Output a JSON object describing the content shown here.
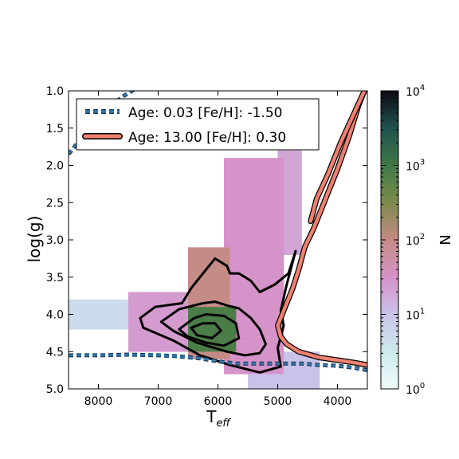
{
  "chart_data": {
    "type": "heatmap",
    "xlabel": "T",
    "xlabel_sub": "eff",
    "ylabel": "log(g)",
    "xlim": [
      8500,
      3500
    ],
    "ylim": [
      5.0,
      1.0
    ],
    "x_ticks": [
      8000,
      7000,
      6000,
      5000,
      4000
    ],
    "y_ticks": [
      1.0,
      1.5,
      2.0,
      2.5,
      3.0,
      3.5,
      4.0,
      4.5,
      5.0
    ],
    "bin": {
      "teff": 100,
      "logg": 0.1
    },
    "colorbar": {
      "label": "N",
      "scale": "log",
      "range": [
        1,
        10000
      ],
      "tick_base": "10",
      "tick_exponents": [
        "0",
        "1",
        "2",
        "3",
        "4"
      ]
    },
    "density_regions": [
      {
        "teff": [
          8500,
          7500
        ],
        "logg": [
          3.8,
          4.2
        ],
        "count": 5
      },
      {
        "teff": [
          7500,
          6500
        ],
        "logg": [
          3.7,
          4.5
        ],
        "count": 25
      },
      {
        "teff": [
          6500,
          5800
        ],
        "logg": [
          3.1,
          4.6
        ],
        "count": 100
      },
      {
        "teff": [
          5900,
          4900
        ],
        "logg": [
          1.9,
          4.8
        ],
        "count": 30
      },
      {
        "teff": [
          5000,
          4600
        ],
        "logg": [
          1.8,
          3.2
        ],
        "count": 20
      },
      {
        "teff": [
          5500,
          4300
        ],
        "logg": [
          4.5,
          5.0
        ],
        "count": 10
      },
      {
        "teff": [
          6500,
          5700
        ],
        "logg": [
          3.9,
          4.5
        ],
        "count": 800
      }
    ],
    "contours": [
      {
        "teff": [
          7300,
          7050,
          6600,
          6450,
          6200,
          6050,
          5850,
          5800,
          5650,
          5450,
          5300,
          5050,
          4820,
          4700,
          4850,
          4950,
          4900,
          5000,
          4950,
          5300,
          5800,
          6300,
          6750,
          7250,
          7300
        ],
        "logg": [
          4.05,
          3.9,
          3.85,
          3.65,
          3.4,
          3.25,
          3.35,
          3.45,
          3.45,
          3.55,
          3.7,
          3.6,
          3.45,
          3.15,
          3.6,
          3.95,
          4.15,
          4.45,
          4.7,
          4.78,
          4.68,
          4.55,
          4.35,
          4.18,
          4.05
        ]
      },
      {
        "teff": [
          6950,
          6650,
          6250,
          6050,
          5850,
          5650,
          5450,
          5300,
          5200,
          5300,
          5550,
          5850,
          6350,
          6750,
          6950
        ],
        "logg": [
          4.1,
          3.93,
          3.85,
          3.83,
          3.88,
          3.92,
          4.05,
          4.2,
          4.4,
          4.52,
          4.55,
          4.5,
          4.38,
          4.22,
          4.1
        ]
      },
      {
        "teff": [
          6650,
          6400,
          6200,
          5900,
          5700,
          5650,
          5900,
          6200,
          6500,
          6650
        ],
        "logg": [
          4.2,
          4.05,
          4.0,
          4.02,
          4.12,
          4.32,
          4.42,
          4.38,
          4.3,
          4.2
        ]
      },
      {
        "teff": [
          6450,
          6250,
          6050,
          5950,
          6100,
          6350,
          6450
        ],
        "logg": [
          4.18,
          4.12,
          4.12,
          4.22,
          4.32,
          4.28,
          4.18
        ]
      }
    ],
    "series": [
      {
        "name": "Age: 0.03 [Fe/H]: -1.50",
        "color": "#2e7cb8",
        "line": "dashed",
        "segments": [
          {
            "teff": [
              8500,
              8200,
              7900,
              7600,
              7300,
              7000
            ],
            "logg": [
              1.85,
              1.55,
              1.28,
              1.08,
              0.93,
              0.82
            ]
          },
          {
            "teff": [
              8500,
              8000,
              7500,
              7000,
              6700,
              6300,
              6000,
              5700,
              5400,
              5000,
              4600,
              4300,
              4000,
              3700,
              3500
            ],
            "logg": [
              4.55,
              4.55,
              4.54,
              4.55,
              4.56,
              4.59,
              4.63,
              4.66,
              4.66,
              4.66,
              4.66,
              4.68,
              4.69,
              4.72,
              4.75
            ]
          }
        ]
      },
      {
        "name": "Age: 13.00 [Fe/H]: 0.30",
        "color": "#f08070",
        "line": "solid",
        "segments": [
          {
            "teff": [
              3550,
              3650,
              3800,
              4000,
              4200,
              4400,
              4550,
              4650,
              4750,
              4850,
              4900,
              4950,
              5000,
              4950,
              4850,
              4650,
              4300,
              3950,
              3700,
              3500
            ],
            "logg": [
              1.0,
              1.2,
              1.6,
              2.05,
              2.45,
              2.85,
              3.1,
              3.4,
              3.65,
              3.85,
              3.95,
              4.05,
              4.15,
              4.3,
              4.4,
              4.5,
              4.58,
              4.62,
              4.65,
              4.68
            ]
          },
          {
            "teff": [
              4450,
              4350,
              4150,
              3950,
              3750,
              3550
            ],
            "logg": [
              2.75,
              2.45,
              2.1,
              1.7,
              1.35,
              1.0
            ]
          }
        ]
      }
    ]
  }
}
